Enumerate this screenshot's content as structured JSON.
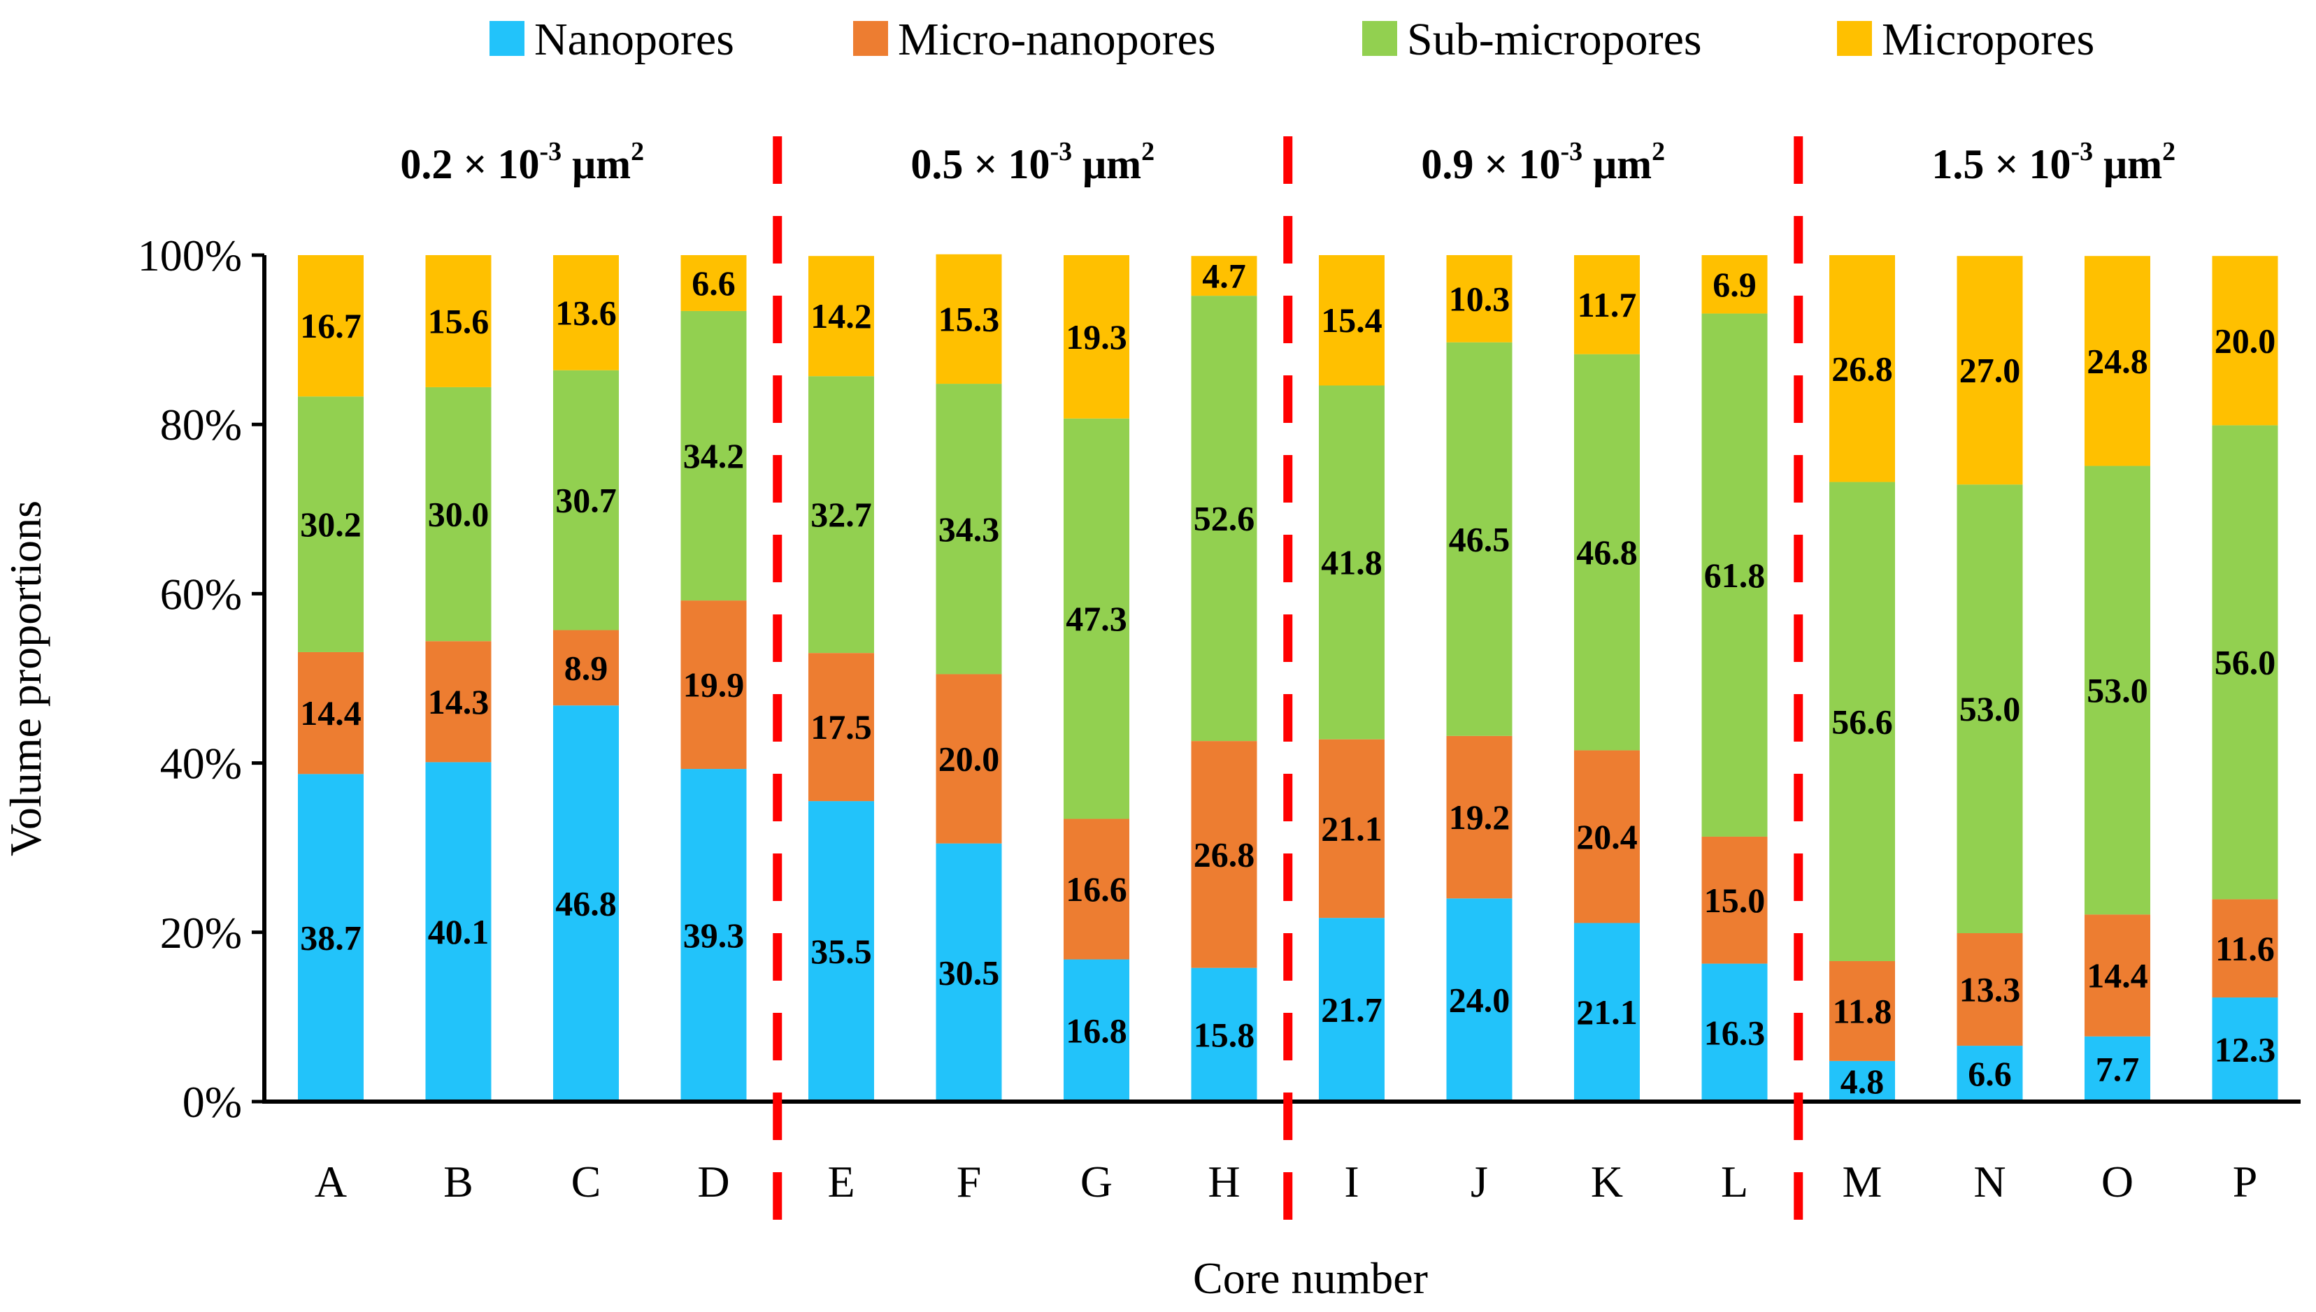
{
  "chart_data": {
    "type": "bar",
    "stacked": true,
    "xlabel": "Core number",
    "ylabel": "Volume proportions",
    "ylim": [
      0,
      100
    ],
    "ytick_values": [
      0,
      20,
      40,
      60,
      80,
      100
    ],
    "yticks": [
      "0%",
      "20%",
      "40%",
      "60%",
      "80%",
      "100%"
    ],
    "categories": [
      "A",
      "B",
      "C",
      "D",
      "E",
      "F",
      "G",
      "H",
      "I",
      "J",
      "K",
      "L",
      "M",
      "N",
      "O",
      "P"
    ],
    "series": [
      {
        "name": "Nanopores",
        "color": "#22C3FA",
        "values": [
          38.7,
          40.1,
          46.8,
          39.3,
          35.5,
          30.5,
          16.8,
          15.8,
          21.7,
          24.0,
          21.1,
          16.3,
          4.8,
          6.6,
          7.7,
          12.3
        ],
        "labels": [
          "38.7",
          "40.1",
          "46.8",
          "39.3",
          "35.5",
          "30.5",
          "16.8",
          "15.8",
          "21.7",
          "24.0",
          "21.1",
          "16.3",
          "4.8",
          "6.6",
          "7.7",
          "12.3"
        ]
      },
      {
        "name": "Micro-nanopores",
        "color": "#ED7D31",
        "values": [
          14.4,
          14.3,
          8.9,
          19.9,
          17.5,
          20.0,
          16.6,
          26.8,
          21.1,
          19.2,
          20.4,
          15.0,
          11.8,
          13.3,
          14.4,
          11.6
        ],
        "labels": [
          "14.4",
          "14.3",
          "8.9",
          "19.9",
          "17.5",
          "20.0",
          "16.6",
          "26.8",
          "21.1",
          "19.2",
          "20.4",
          "15.0",
          "11.8",
          "13.3",
          "14.4",
          "11.6"
        ]
      },
      {
        "name": "Sub-micropores",
        "color": "#92D050",
        "values": [
          30.2,
          30.0,
          30.7,
          34.2,
          32.7,
          34.3,
          47.3,
          52.6,
          41.8,
          46.5,
          46.8,
          61.8,
          56.6,
          53.0,
          53.0,
          56.0
        ],
        "labels": [
          "30.2",
          "30.0",
          "30.7",
          "34.2",
          "32.7",
          "34.3",
          "47.3",
          "52.6",
          "41.8",
          "46.5",
          "46.8",
          "61.8",
          "56.6",
          "53.0",
          "53.0",
          "56.0"
        ]
      },
      {
        "name": "Micropores",
        "color": "#FFC000",
        "values": [
          16.7,
          15.6,
          13.6,
          6.6,
          14.2,
          15.3,
          19.3,
          4.7,
          15.4,
          10.3,
          11.7,
          6.9,
          26.8,
          27.0,
          24.8,
          20.0
        ],
        "labels": [
          "16.7",
          "15.6",
          "13.6",
          "6.6",
          "14.2",
          "15.3",
          "19.3",
          "4.7",
          "15.4",
          "10.3",
          "11.7",
          "6.9",
          "26.8",
          "27.0",
          "24.8",
          "20.0"
        ]
      }
    ],
    "groups": [
      {
        "label_value": "0.2 × 10",
        "label_exp": "-3",
        "label_unit": " μm",
        "label_unit_exp": "2",
        "start_index": 0,
        "end_index": 3
      },
      {
        "label_value": "0.5 × 10",
        "label_exp": "-3",
        "label_unit": " μm",
        "label_unit_exp": "2",
        "start_index": 4,
        "end_index": 7
      },
      {
        "label_value": "0.9 × 10",
        "label_exp": "-3",
        "label_unit": " μm",
        "label_unit_exp": "2",
        "start_index": 8,
        "end_index": 11
      },
      {
        "label_value": "1.5 × 10",
        "label_exp": "-3",
        "label_unit": " μm",
        "label_unit_exp": "2",
        "start_index": 12,
        "end_index": 15
      }
    ],
    "divider_color": "#FF0000",
    "legend_position": "top"
  }
}
